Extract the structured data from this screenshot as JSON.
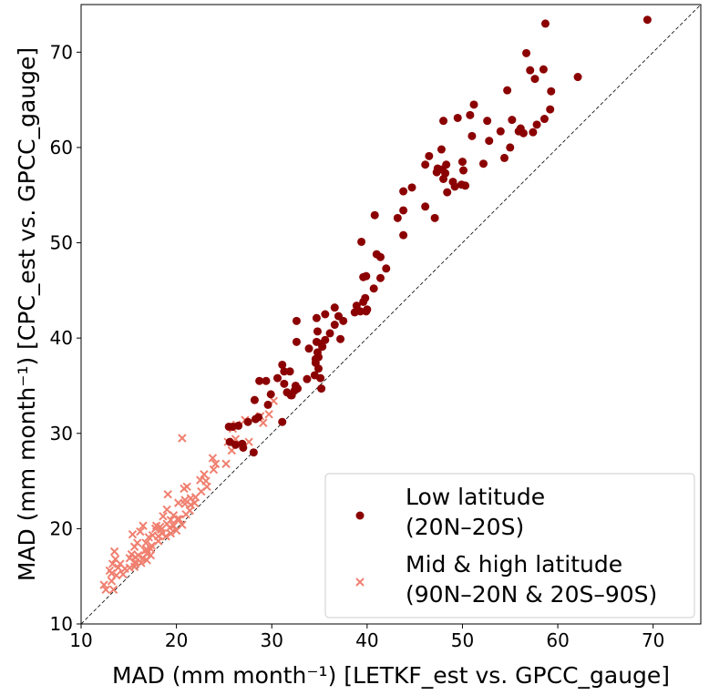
{
  "chart_data": {
    "type": "scatter",
    "xlabel": "MAD (mm month⁻¹) [LETKF_est vs. GPCC_gauge]",
    "ylabel": "MAD (mm month⁻¹) [CPC_est vs. GPCC_gauge]",
    "xlim": [
      10,
      75
    ],
    "ylim": [
      10,
      75
    ],
    "xticks": [
      10,
      20,
      30,
      40,
      50,
      60,
      70
    ],
    "yticks": [
      10,
      20,
      30,
      40,
      50,
      60,
      70
    ],
    "grid": false,
    "reference_line": "y = x",
    "legend_position": "bottom-right",
    "colors": {
      "low_latitude": "#8b0000",
      "mid_high_latitude": "#f08070",
      "reference_line": "#000000"
    },
    "series": [
      {
        "name_line1": "Low latitude",
        "name_line2": "(20N–20S)",
        "marker": "circle",
        "points": [
          [
            69.4,
            73.4
          ],
          [
            58.7,
            73.0
          ],
          [
            56.7,
            69.9
          ],
          [
            57.1,
            68.1
          ],
          [
            58.5,
            68.2
          ],
          [
            57.6,
            67.2
          ],
          [
            59.3,
            65.9
          ],
          [
            62.1,
            67.4
          ],
          [
            54.7,
            66.0
          ],
          [
            51.2,
            64.5
          ],
          [
            50.8,
            63.4
          ],
          [
            49.5,
            63.1
          ],
          [
            48.0,
            62.8
          ],
          [
            52.6,
            62.8
          ],
          [
            54.0,
            61.7
          ],
          [
            55.2,
            62.9
          ],
          [
            55.9,
            61.7
          ],
          [
            56.4,
            61.5
          ],
          [
            57.4,
            61.6
          ],
          [
            56.1,
            62.0
          ],
          [
            57.8,
            62.4
          ],
          [
            58.6,
            63.0
          ],
          [
            59.2,
            64.0
          ],
          [
            51.0,
            61.2
          ],
          [
            52.8,
            60.7
          ],
          [
            47.8,
            59.8
          ],
          [
            48.3,
            58.2
          ],
          [
            46.5,
            59.1
          ],
          [
            47.3,
            57.4
          ],
          [
            47.4,
            57.8
          ],
          [
            47.9,
            57.7
          ],
          [
            48.2,
            57.3
          ],
          [
            44.7,
            55.8
          ],
          [
            46.1,
            58.2
          ],
          [
            48.0,
            56.7
          ],
          [
            49.0,
            56.4
          ],
          [
            49.2,
            55.9
          ],
          [
            48.4,
            55.3
          ],
          [
            49.9,
            56.1
          ],
          [
            50.1,
            57.6
          ],
          [
            50.0,
            58.5
          ],
          [
            50.3,
            56.0
          ],
          [
            52.2,
            58.3
          ],
          [
            54.4,
            58.9
          ],
          [
            55.0,
            60.0
          ],
          [
            43.8,
            55.4
          ],
          [
            43.2,
            52.6
          ],
          [
            39.4,
            50.1
          ],
          [
            40.8,
            52.9
          ],
          [
            46.1,
            53.8
          ],
          [
            47.1,
            52.6
          ],
          [
            43.8,
            53.4
          ],
          [
            43.8,
            50.8
          ],
          [
            41.0,
            48.8
          ],
          [
            41.4,
            48.5
          ],
          [
            42.0,
            47.3
          ],
          [
            41.4,
            46.3
          ],
          [
            39.6,
            46.4
          ],
          [
            39.9,
            46.5
          ],
          [
            40.7,
            45.2
          ],
          [
            39.8,
            44.2
          ],
          [
            39.6,
            43.8
          ],
          [
            40.0,
            43.0
          ],
          [
            39.9,
            42.8
          ],
          [
            39.3,
            42.8
          ],
          [
            38.9,
            43.4
          ],
          [
            38.7,
            42.7
          ],
          [
            37.5,
            41.8
          ],
          [
            37.0,
            42.3
          ],
          [
            36.6,
            43.2
          ],
          [
            34.7,
            42.1
          ],
          [
            32.6,
            41.8
          ],
          [
            35.6,
            42.5
          ],
          [
            36.6,
            41.4
          ],
          [
            36.1,
            40.5
          ],
          [
            34.8,
            40.7
          ],
          [
            35.3,
            39.1
          ],
          [
            35.2,
            39.4
          ],
          [
            35.6,
            39.8
          ],
          [
            34.7,
            39.6
          ],
          [
            33.9,
            38.9
          ],
          [
            32.6,
            39.6
          ],
          [
            34.6,
            37.8
          ],
          [
            34.9,
            36.8
          ],
          [
            34.5,
            36.1
          ],
          [
            35.1,
            35.8
          ],
          [
            35.2,
            34.7
          ],
          [
            34.6,
            37.4
          ],
          [
            34.8,
            38.5
          ],
          [
            34.9,
            38.0
          ],
          [
            37.2,
            39.9
          ],
          [
            31.1,
            37.2
          ],
          [
            31.3,
            36.5
          ],
          [
            31.9,
            36.5
          ],
          [
            30.6,
            35.8
          ],
          [
            32.5,
            35.0
          ],
          [
            32.4,
            34.5
          ],
          [
            32.7,
            34.7
          ],
          [
            32.0,
            34.0
          ],
          [
            31.6,
            34.3
          ],
          [
            31.3,
            35.2
          ],
          [
            32.1,
            34.0
          ],
          [
            33.7,
            35.7
          ],
          [
            29.4,
            35.5
          ],
          [
            28.7,
            35.5
          ],
          [
            29.9,
            34.1
          ],
          [
            28.2,
            33.5
          ],
          [
            29.6,
            33.0
          ],
          [
            28.6,
            31.7
          ],
          [
            28.3,
            31.5
          ],
          [
            27.5,
            31.2
          ],
          [
            31.1,
            31.2
          ],
          [
            26.5,
            30.8
          ],
          [
            25.5,
            30.7
          ],
          [
            25.9,
            30.7
          ],
          [
            25.6,
            29.1
          ],
          [
            26.2,
            28.8
          ],
          [
            26.9,
            28.9
          ],
          [
            27.0,
            28.5
          ],
          [
            28.1,
            28.0
          ]
        ]
      },
      {
        "name_line1": "Mid & high latitude",
        "name_line2": "(90N–20N & 20S–90S)",
        "marker": "x",
        "points": [
          [
            27.2,
            31.4
          ],
          [
            29.7,
            32.0
          ],
          [
            29.1,
            31.1
          ],
          [
            28.8,
            31.8
          ],
          [
            30.2,
            33.4
          ],
          [
            26.3,
            30.9
          ],
          [
            25.9,
            30.5
          ],
          [
            26.2,
            29.4
          ],
          [
            25.4,
            29.1
          ],
          [
            27.6,
            29.1
          ],
          [
            25.8,
            28.2
          ],
          [
            25.2,
            26.8
          ],
          [
            24.1,
            26.8
          ],
          [
            20.6,
            29.5
          ],
          [
            23.8,
            27.4
          ],
          [
            23.9,
            26.2
          ],
          [
            22.9,
            25.7
          ],
          [
            22.5,
            25.1
          ],
          [
            23.1,
            25.0
          ],
          [
            21.1,
            24.4
          ],
          [
            20.8,
            24.2
          ],
          [
            20.9,
            23.0
          ],
          [
            21.5,
            23.2
          ],
          [
            20.9,
            22.6
          ],
          [
            21.9,
            22.7
          ],
          [
            21.5,
            22.5
          ],
          [
            21.4,
            21.9
          ],
          [
            21.0,
            21.5
          ],
          [
            20.2,
            22.7
          ],
          [
            19.1,
            23.6
          ],
          [
            19.0,
            22.0
          ],
          [
            19.4,
            20.9
          ],
          [
            19.7,
            21.4
          ],
          [
            20.1,
            21.0
          ],
          [
            20.6,
            20.4
          ],
          [
            19.7,
            20.3
          ],
          [
            18.6,
            21.3
          ],
          [
            19.3,
            20.1
          ],
          [
            18.5,
            19.5
          ],
          [
            18.1,
            19.2
          ],
          [
            18.9,
            19.2
          ],
          [
            19.4,
            19.5
          ],
          [
            20.0,
            19.8
          ],
          [
            18.3,
            20.2
          ],
          [
            17.9,
            20.3
          ],
          [
            18.1,
            18.7
          ],
          [
            17.5,
            19.3
          ],
          [
            17.1,
            19.1
          ],
          [
            16.8,
            18.5
          ],
          [
            17.4,
            18.2
          ],
          [
            16.9,
            17.8
          ],
          [
            17.3,
            17.2
          ],
          [
            16.9,
            16.7
          ],
          [
            16.7,
            17.7
          ],
          [
            16.0,
            17.2
          ],
          [
            16.5,
            16.9
          ],
          [
            16.3,
            16.4
          ],
          [
            15.7,
            16.5
          ],
          [
            15.3,
            17.3
          ],
          [
            15.7,
            17.0
          ],
          [
            15.1,
            16.9
          ],
          [
            15.7,
            16.3
          ],
          [
            15.6,
            18.1
          ],
          [
            15.4,
            19.4
          ],
          [
            16.2,
            19.7
          ],
          [
            16.5,
            20.3
          ],
          [
            17.8,
            20.0
          ],
          [
            15.9,
            18.5
          ],
          [
            13.5,
            17.6
          ],
          [
            13.6,
            16.8
          ],
          [
            13.3,
            16.3
          ],
          [
            14.1,
            16.3
          ],
          [
            14.6,
            15.8
          ],
          [
            13.9,
            15.9
          ],
          [
            13.7,
            15.1
          ],
          [
            13.2,
            15.3
          ],
          [
            13.0,
            15.6
          ],
          [
            13.2,
            14.5
          ],
          [
            12.4,
            14.1
          ],
          [
            12.6,
            13.6
          ],
          [
            13.4,
            13.6
          ],
          [
            14.4,
            15.2
          ],
          [
            15.1,
            15.9
          ],
          [
            15.6,
            16.0
          ],
          [
            16.9,
            17.4
          ],
          [
            17.3,
            17.9
          ],
          [
            18.4,
            19.9
          ],
          [
            19.0,
            20.5
          ],
          [
            20.3,
            21.0
          ],
          [
            22.0,
            23.3
          ],
          [
            22.6,
            23.9
          ],
          [
            23.2,
            24.4
          ]
        ]
      }
    ]
  }
}
